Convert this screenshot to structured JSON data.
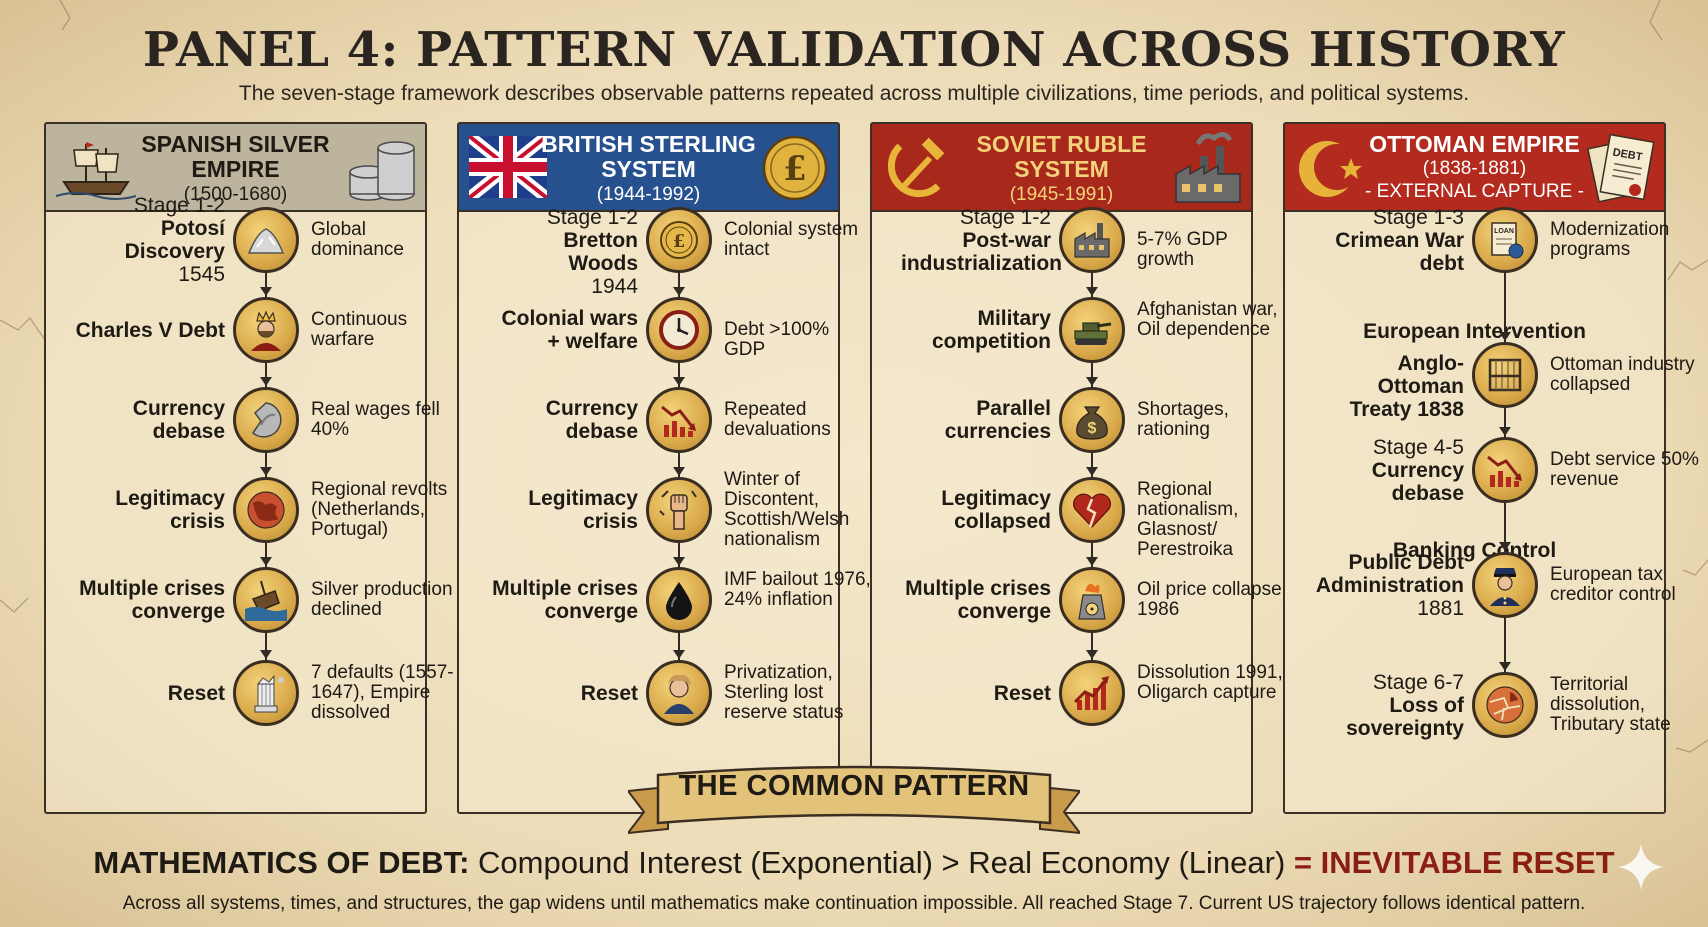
{
  "title": "PANEL 4: PATTERN VALIDATION ACROSS HISTORY",
  "subtitle": "The seven-stage framework describes observable patterns repeated across multiple civilizations, time periods, and political systems.",
  "colors": {
    "gray_header": "#bdb49e",
    "blue_header": "#27508e",
    "red_header": "#a8281c",
    "red_header2": "#b32a1e",
    "reset_red": "#8b1e14"
  },
  "panels": [
    {
      "name": "SPANISH SILVER EMPIRE",
      "years": "(1500-1680)",
      "extra": "",
      "left_icon": "ship-icon",
      "right_icon": "coin-stack-icon",
      "rows": [
        {
          "stage": "Stage 1-2",
          "name": "Potosí Discovery",
          "year": "1545",
          "icon": "silver-pile-icon",
          "desc": "Global dominance"
        },
        {
          "stage": "",
          "name": "Charles V Debt",
          "year": "",
          "icon": "king-icon",
          "desc": "Continuous warfare"
        },
        {
          "stage": "",
          "name": "Currency debase",
          "year": "",
          "icon": "clipped-coin-icon",
          "desc": "Real wages fell 40%"
        },
        {
          "stage": "",
          "name": "Legitimacy crisis",
          "year": "",
          "icon": "europe-map-icon",
          "desc": "Regional revolts (Netherlands, Portugal)"
        },
        {
          "stage": "",
          "name": "Multiple crises converge",
          "year": "",
          "icon": "sinking-ship-icon",
          "desc": "Silver production declined"
        },
        {
          "stage": "",
          "name": "Reset",
          "year": "",
          "icon": "broken-column-icon",
          "desc": "7 defaults (1557-1647), Empire dissolved"
        }
      ]
    },
    {
      "name": "BRITISH STERLING SYSTEM",
      "years": "(1944-1992)",
      "extra": "",
      "left_icon": "union-jack-icon",
      "right_icon": "pound-coin-icon",
      "rows": [
        {
          "stage": "Stage 1-2",
          "name": "Bretton Woods",
          "year": "1944",
          "icon": "reserve-currency-icon",
          "desc": "Colonial system intact"
        },
        {
          "stage": "",
          "name": "Colonial wars + welfare",
          "year": "",
          "icon": "clock-icon",
          "desc": "Debt >100% GDP"
        },
        {
          "stage": "",
          "name": "Currency debase",
          "year": "",
          "icon": "falling-chart-icon",
          "desc": "Repeated devaluations"
        },
        {
          "stage": "",
          "name": "Legitimacy crisis",
          "year": "",
          "icon": "raised-fist-icon",
          "desc": "Winter of Discontent, Scottish/Welsh nationalism"
        },
        {
          "stage": "",
          "name": "Multiple crises converge",
          "year": "",
          "icon": "oil-drop-icon",
          "desc": "IMF bailout 1976, 24% inflation"
        },
        {
          "stage": "",
          "name": "Reset",
          "year": "",
          "icon": "portrait-icon",
          "desc": "Privatization, Sterling lost reserve status"
        }
      ]
    },
    {
      "name": "SOVIET RUBLE SYSTEM",
      "years": "(1945-1991)",
      "extra": "",
      "left_icon": "hammer-sickle-icon",
      "right_icon": "factory-icon",
      "rows": [
        {
          "stage": "Stage 1-2",
          "name": "Post-war industrialization",
          "year": "",
          "icon": "factory-icon",
          "desc": "5-7% GDP growth"
        },
        {
          "stage": "",
          "name": "Military competition",
          "year": "",
          "icon": "tank-icon",
          "desc": "Afghanistan war, Oil dependence"
        },
        {
          "stage": "",
          "name": "Parallel currencies",
          "year": "",
          "icon": "money-bag-icon",
          "desc": "Shortages, rationing"
        },
        {
          "stage": "",
          "name": "Legitimacy collapsed",
          "year": "",
          "icon": "broken-heart-icon",
          "desc": "Regional nationalism, Glasnost/ Perestroika"
        },
        {
          "stage": "",
          "name": "Multiple crises converge",
          "year": "",
          "icon": "radiation-icon",
          "desc": "Oil price collapse 1986"
        },
        {
          "stage": "",
          "name": "Reset",
          "year": "",
          "icon": "rising-chart-icon",
          "desc": "Dissolution 1991, Oligarch capture"
        }
      ]
    },
    {
      "name": "OTTOMAN EMPIRE",
      "years": "(1838-1881)",
      "extra": "- EXTERNAL CAPTURE -",
      "left_icon": "crescent-star-icon",
      "right_icon": "debt-document-icon",
      "rows": [
        {
          "stage": "Stage 1-3",
          "name": "Crimean War debt",
          "year": "",
          "icon": "loan-document-icon",
          "desc": "Modernization programs"
        },
        {
          "stage": "",
          "name": "Anglo-Ottoman Treaty 1838",
          "year": "",
          "icon": "loom-icon",
          "desc": "Ottoman industry collapsed"
        },
        {
          "stage": "Stage 4-5",
          "name": "Currency debase",
          "year": "",
          "icon": "falling-chart-icon",
          "desc": "Debt service 50% revenue"
        },
        {
          "stage": "",
          "name": "Public Debt Administration",
          "year": "1881",
          "icon": "officer-icon",
          "desc": "European tax creditor control"
        },
        {
          "stage": "Stage 6-7",
          "name": "Loss of sovereignty",
          "year": "",
          "icon": "partitioned-map-icon",
          "desc": "Territorial dissolution, Tributary state"
        }
      ],
      "subheads": [
        "European Intervention",
        "Banking Control"
      ]
    }
  ],
  "banner": "THE COMMON PATTERN",
  "math": {
    "lead": "MATHEMATICS OF DEBT:",
    "body": " Compound Interest (Exponential) > Real Economy (Linear) ",
    "eq": "= ",
    "result": "INEVITABLE RESET"
  },
  "footer": "Across all systems, times, and structures, the gap widens until mathematics make continuation impossible. All reached Stage 7. Current US trajectory follows identical pattern."
}
